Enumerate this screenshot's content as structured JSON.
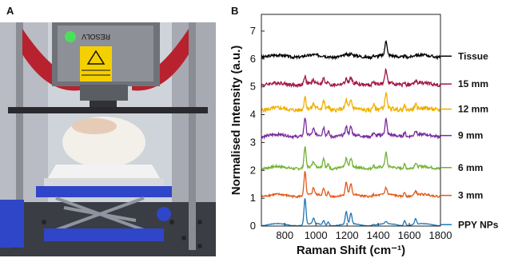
{
  "panels": {
    "a_label": "A",
    "b_label": "B"
  },
  "photo": {
    "device_text": "RESOLV",
    "colors": {
      "frame": "#c0392b",
      "platform": "#2f46c8",
      "sample": "#f3efe9",
      "background": "#d7d4d2"
    }
  },
  "chart_data": {
    "type": "line",
    "xlabel": "Raman Shift (cm⁻¹)",
    "ylabel": "Normalised Intensity (a.u.)",
    "xlim": [
      650,
      1800
    ],
    "ylim": [
      0,
      7.6
    ],
    "xticks": [
      "800",
      "1000",
      "1200",
      "1400",
      "1600",
      "1800"
    ],
    "yticks": [
      "0",
      "1",
      "2",
      "3",
      "4",
      "5",
      "6",
      "7"
    ],
    "grid": false,
    "legend_placement": "right",
    "series": [
      {
        "name": "Tissue",
        "offset": 6.1,
        "color": "#000000"
      },
      {
        "name": "15 mm",
        "offset": 5.1,
        "color": "#a3174a"
      },
      {
        "name": "12 mm",
        "offset": 4.2,
        "color": "#f0b000"
      },
      {
        "name": "9 mm",
        "offset": 3.25,
        "color": "#7a2c9e"
      },
      {
        "name": "6 mm",
        "offset": 2.1,
        "color": "#72b133"
      },
      {
        "name": "3 mm",
        "offset": 1.1,
        "color": "#e05a1c"
      },
      {
        "name": "PPY NPs",
        "offset": 0.05,
        "color": "#1f77b4"
      }
    ],
    "peaks_cm1": [
      930,
      985,
      1050,
      1080,
      1195,
      1225,
      1370,
      1450,
      1570,
      1640
    ]
  }
}
